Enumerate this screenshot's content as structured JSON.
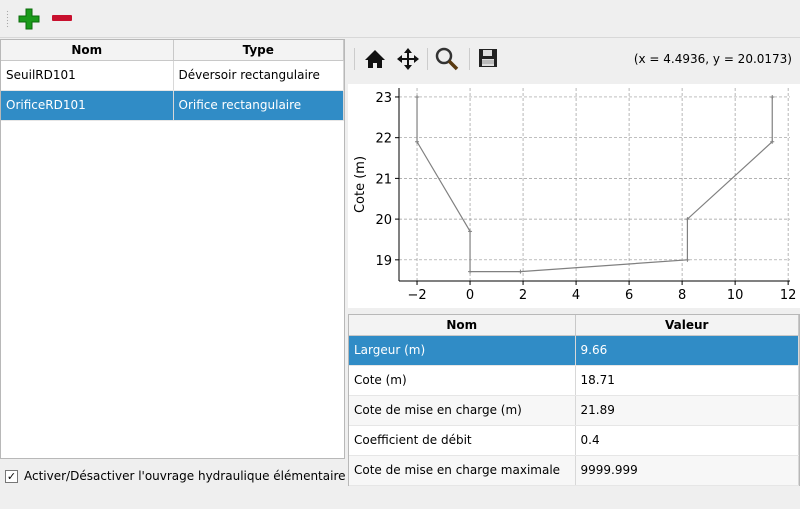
{
  "toolbar": {
    "add_icon": "plus-icon",
    "remove_icon": "minus-icon"
  },
  "structures": {
    "columns": [
      "Nom",
      "Type"
    ],
    "rows": [
      {
        "nom": "SeuilRD101",
        "type": "Déversoir rectangulaire"
      },
      {
        "nom": "OrificeRD101",
        "type": "Orifice rectangulaire",
        "selected": true
      }
    ]
  },
  "toggle": {
    "label": "Activer/Désactiver l'ouvrage hydraulique élémentaire",
    "checked": true
  },
  "plot_toolbar": {
    "icons": [
      "home-icon",
      "pan-icon",
      "zoom-icon",
      "save-icon"
    ],
    "coords": "(x = 4.4936,   y = 20.0173)"
  },
  "chart_data": {
    "type": "line",
    "ylabel": "Cote (m)",
    "xlim": [
      -2.68,
      12.07
    ],
    "ylim": [
      18.48,
      23.22
    ],
    "grid": true,
    "xticks": [
      "−2",
      "0",
      "2",
      "4",
      "6",
      "8",
      "10",
      "12"
    ],
    "xtick_values": [
      -2,
      0,
      2,
      4,
      6,
      8,
      10,
      12
    ],
    "yticks": [
      "19",
      "20",
      "21",
      "22",
      "23"
    ],
    "ytick_values": [
      19,
      20,
      21,
      22,
      23
    ],
    "x": [
      -2,
      -2,
      0,
      0,
      1.9,
      8.2,
      8.2,
      11.4,
      11.4
    ],
    "y": [
      23,
      21.9,
      19.7,
      18.71,
      18.71,
      19,
      20,
      21.9,
      23
    ],
    "color": "#808080"
  },
  "properties": {
    "columns": [
      "Nom",
      "Valeur"
    ],
    "rows": [
      {
        "nom": "Largeur (m)",
        "valeur": "9.66",
        "selected": true
      },
      {
        "nom": "Cote (m)",
        "valeur": "18.71"
      },
      {
        "nom": "Cote de mise en charge (m)",
        "valeur": "21.89"
      },
      {
        "nom": "Coefficient de débit",
        "valeur": "0.4"
      },
      {
        "nom": "Cote de mise en charge maximale",
        "valeur": "9999.999"
      }
    ]
  }
}
